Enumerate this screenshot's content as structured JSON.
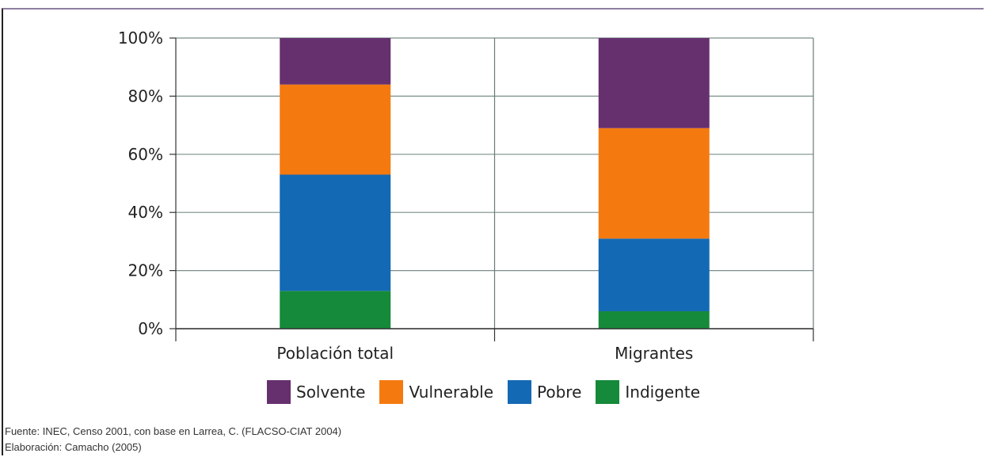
{
  "chart_data": {
    "type": "bar",
    "stacked": true,
    "categories": [
      "Población total",
      "Migrantes"
    ],
    "series": [
      {
        "name": "Indigente",
        "color": "#158a3a",
        "values": [
          13,
          6
        ]
      },
      {
        "name": "Pobre",
        "color": "#1469b4",
        "values": [
          40,
          25
        ]
      },
      {
        "name": "Vulnerable",
        "color": "#f47a10",
        "values": [
          31,
          38
        ]
      },
      {
        "name": "Solvente",
        "color": "#66306e",
        "values": [
          16,
          31
        ]
      }
    ],
    "legend_order": [
      "Solvente",
      "Vulnerable",
      "Pobre",
      "Indigente"
    ],
    "ylim": [
      0,
      100
    ],
    "yticks": [
      "0%",
      "20%",
      "40%",
      "60%",
      "80%",
      "100%"
    ],
    "grid": true,
    "legend_position": "bottom",
    "title": "",
    "xlabel": "",
    "ylabel": ""
  },
  "footer": {
    "source": "Fuente: INEC, Censo 2001, con base en Larrea, C. (FLACSO-CIAT 2004)",
    "credit": "Elaboración: Camacho (2005)"
  }
}
